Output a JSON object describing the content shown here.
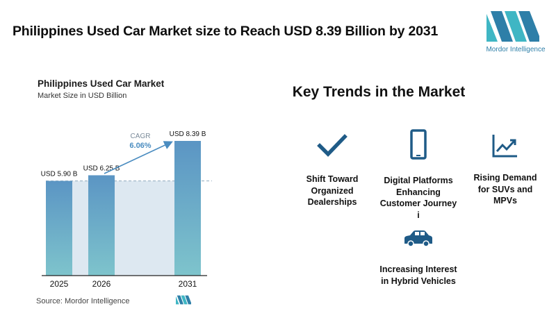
{
  "headline": "Philippines Used Car Market size to Reach USD 8.39 Billion by 2031",
  "logo": {
    "text": "Mordor Intelligence",
    "color": "#2e7fa8"
  },
  "chart_data": {
    "type": "bar",
    "title": "Philippines Used Car Market",
    "subtitle": "Market Size in USD Billion",
    "categories": [
      "2025",
      "2026",
      "2031"
    ],
    "values": [
      5.9,
      6.25,
      8.39
    ],
    "data_labels": [
      "USD 5.90 B",
      "USD 6.25 B",
      "USD 8.39 B"
    ],
    "cagr_label": "CAGR",
    "cagr_value": "6.06%",
    "ylim": [
      0,
      8.39
    ],
    "grid": false,
    "colors": {
      "bar_top": "#5b95c4",
      "bar_bottom": "#7ec4cc",
      "shade": "#dde8f1",
      "arrow": "#4a8cc0"
    }
  },
  "source": "Source:  Mordor Intelligence",
  "trends": {
    "title": "Key Trends in the Market",
    "items": [
      {
        "icon": "checkmark-icon",
        "label": "Shift Toward Organized Dealerships"
      },
      {
        "icon": "smartphone-icon",
        "label": "Digital Platforms Enhancing Customer Journey i"
      },
      {
        "icon": "line-chart-icon",
        "label": "Rising Demand for SUVs and MPVs"
      },
      {
        "icon": "car-icon",
        "label": "Increasing Interest in Hybrid Vehicles"
      }
    ],
    "icon_color": "#1f5b87"
  }
}
